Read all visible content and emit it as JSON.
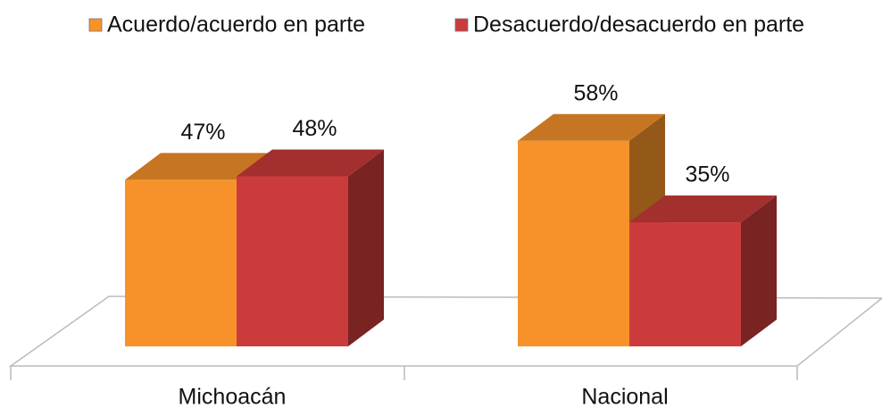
{
  "chart_data": {
    "type": "bar3d",
    "categories": [
      "Michoacán",
      "Nacional"
    ],
    "series": [
      {
        "name": "Acuerdo/acuerdo en parte",
        "color": "#f7922a",
        "values": [
          47,
          58
        ],
        "value_labels": [
          "47%",
          "58%"
        ]
      },
      {
        "name": "Desacuerdo/desacuerdo en parte",
        "color": "#cc3b3b",
        "values": [
          48,
          35
        ],
        "value_labels": [
          "48%",
          "35%"
        ]
      }
    ],
    "legend": "top"
  }
}
